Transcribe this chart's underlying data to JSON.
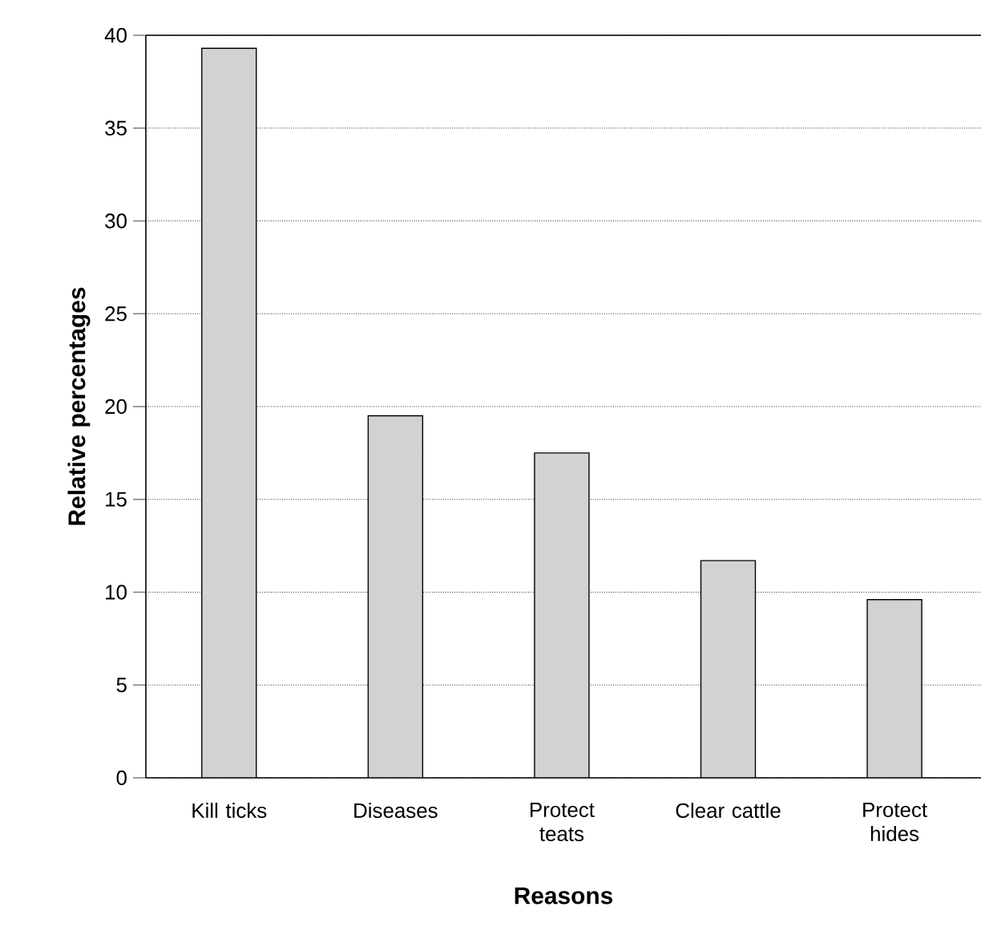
{
  "chart_data": {
    "type": "bar",
    "xlabel": "Reasons",
    "ylabel": "Relative percentages",
    "categories": [
      "Kill ticks",
      "Diseases",
      "Protect teats",
      "Clear cattle",
      "Protect hides"
    ],
    "values": [
      39.3,
      19.5,
      17.5,
      11.7,
      9.6
    ],
    "color": "#d1d2d4",
    "ylim": [
      0,
      40
    ],
    "yticks": [
      0,
      5,
      10,
      15,
      20,
      25,
      30,
      35,
      40
    ],
    "grid": "y"
  }
}
